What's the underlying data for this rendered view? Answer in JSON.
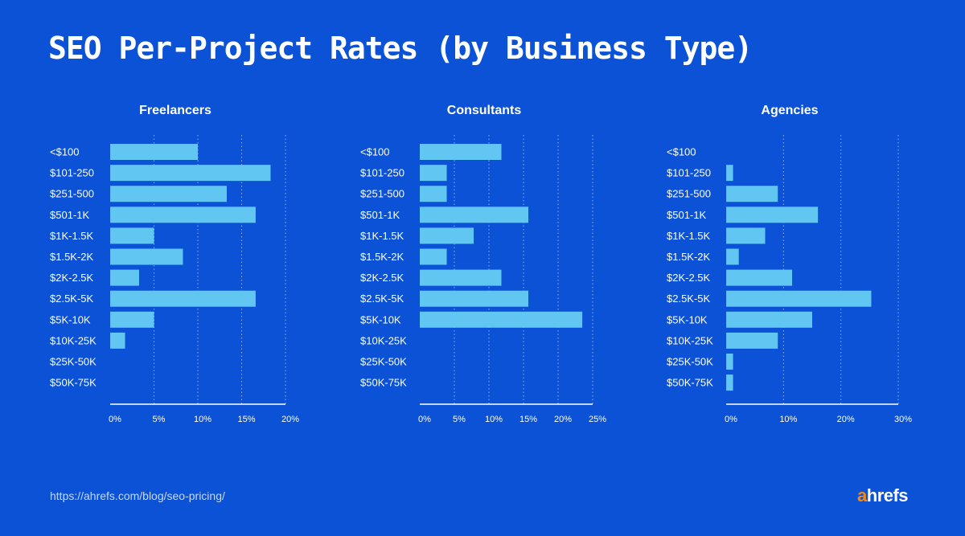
{
  "title": "SEO Per-Project Rates (by Business Type)",
  "footer": {
    "url": "https://ahrefs.com/blog/seo-pricing/"
  },
  "logo": {
    "accent": "a",
    "rest": "hrefs"
  },
  "colors": {
    "background": "#0b52d6",
    "bar": "#62c6f2",
    "axis": "#ffffff",
    "logo_accent": "#ff8800"
  },
  "chart_data": [
    {
      "type": "bar",
      "orientation": "horizontal",
      "title": "Freelancers",
      "categories": [
        "<$100",
        "$101-250",
        "$251-500",
        "$501-1K",
        "$1K-1.5K",
        "$1.5K-2K",
        "$2K-2.5K",
        "$2.5K-5K",
        "$5K-10K",
        "$10K-25K",
        "$25K-50K",
        "$50K-75K"
      ],
      "values": [
        10,
        18.3,
        13.3,
        16.6,
        5,
        8.3,
        3.3,
        16.6,
        5,
        1.7,
        0,
        0
      ],
      "xlim": [
        0,
        20
      ],
      "xticks": [
        "0%",
        "5%",
        "10%",
        "15%",
        "20%"
      ],
      "grid": true
    },
    {
      "type": "bar",
      "orientation": "horizontal",
      "title": "Consultants",
      "categories": [
        "<$100",
        "$101-250",
        "$251-500",
        "$501-1K",
        "$1K-1.5K",
        "$1.5K-2K",
        "$2K-2.5K",
        "$2.5K-5K",
        "$5K-10K",
        "$10K-25K",
        "$25K-50K",
        "$50K-75K"
      ],
      "values": [
        11.8,
        3.9,
        3.9,
        15.7,
        7.8,
        3.9,
        11.8,
        15.7,
        23.5,
        0,
        0,
        0
      ],
      "xlim": [
        0,
        25
      ],
      "xticks": [
        "0%",
        "5%",
        "10%",
        "15%",
        "20%",
        "25%"
      ],
      "grid": true
    },
    {
      "type": "bar",
      "orientation": "horizontal",
      "title": "Agencies",
      "categories": [
        "<$100",
        "$101-250",
        "$251-500",
        "$501-1K",
        "$1K-1.5K",
        "$1.5K-2K",
        "$2K-2.5K",
        "$2.5K-5K",
        "$5K-10K",
        "$10K-25K",
        "$25K-50K",
        "$50K-75K"
      ],
      "values": [
        0,
        1.2,
        9,
        16,
        6.8,
        2.2,
        11.5,
        25.3,
        15,
        9,
        1.2,
        1.2
      ],
      "xlim": [
        0,
        30
      ],
      "xticks": [
        "0%",
        "10%",
        "20%",
        "30%"
      ],
      "grid": true
    }
  ]
}
